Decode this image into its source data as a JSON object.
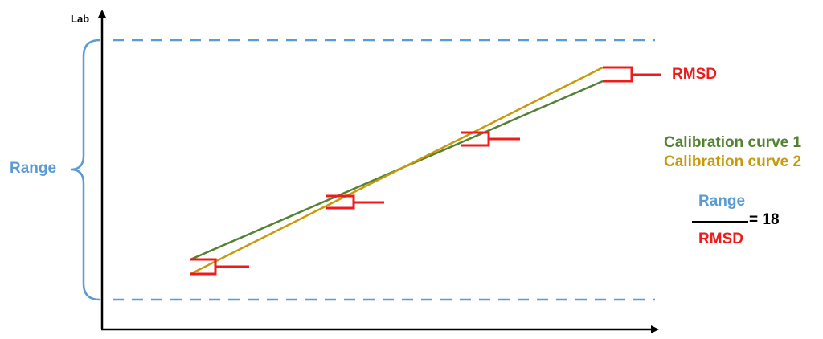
{
  "labels": {
    "axis_y": "Lab",
    "range": "Range",
    "rmsd": "RMSD",
    "legend": [
      "Calibration curve 1",
      "Calibration curve 2"
    ],
    "fraction_numerator": "Range",
    "fraction_denominator": "RMSD",
    "fraction_equals": "= 18"
  },
  "colors": {
    "range": "#5b9bd5",
    "rmsd": "#ee1c1c",
    "curve1": "#548235",
    "curve2": "#c89a0a",
    "axis": "#000000"
  },
  "icons": {
    "range_brace": "curly-brace-icon",
    "deviation_markers": "bracket-marker-icon"
  }
}
